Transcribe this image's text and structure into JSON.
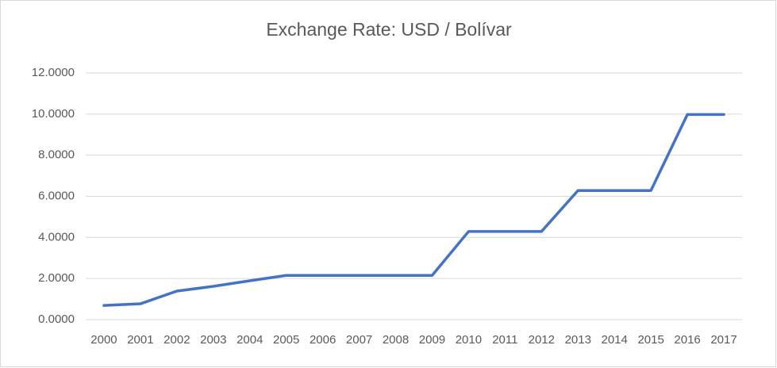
{
  "chart_data": {
    "type": "line",
    "title": "Exchange Rate: USD / Bolívar",
    "categories": [
      "2000",
      "2001",
      "2002",
      "2003",
      "2004",
      "2005",
      "2006",
      "2007",
      "2008",
      "2009",
      "2010",
      "2011",
      "2012",
      "2013",
      "2014",
      "2015",
      "2016",
      "2017"
    ],
    "values": [
      0.69,
      0.77,
      1.39,
      1.62,
      1.89,
      2.15,
      2.15,
      2.15,
      2.15,
      2.15,
      4.29,
      4.29,
      4.29,
      6.28,
      6.28,
      6.28,
      9.98,
      9.98
    ],
    "color": "#4472c4",
    "ylim": [
      0,
      12
    ],
    "yticks": [
      {
        "value": 0,
        "label": "0.0000"
      },
      {
        "value": 2,
        "label": "2.0000"
      },
      {
        "value": 4,
        "label": "4.0000"
      },
      {
        "value": 6,
        "label": "6.0000"
      },
      {
        "value": 8,
        "label": "8.0000"
      },
      {
        "value": 10,
        "label": "10.0000"
      },
      {
        "value": 12,
        "label": "12.0000"
      }
    ],
    "grid": true
  }
}
